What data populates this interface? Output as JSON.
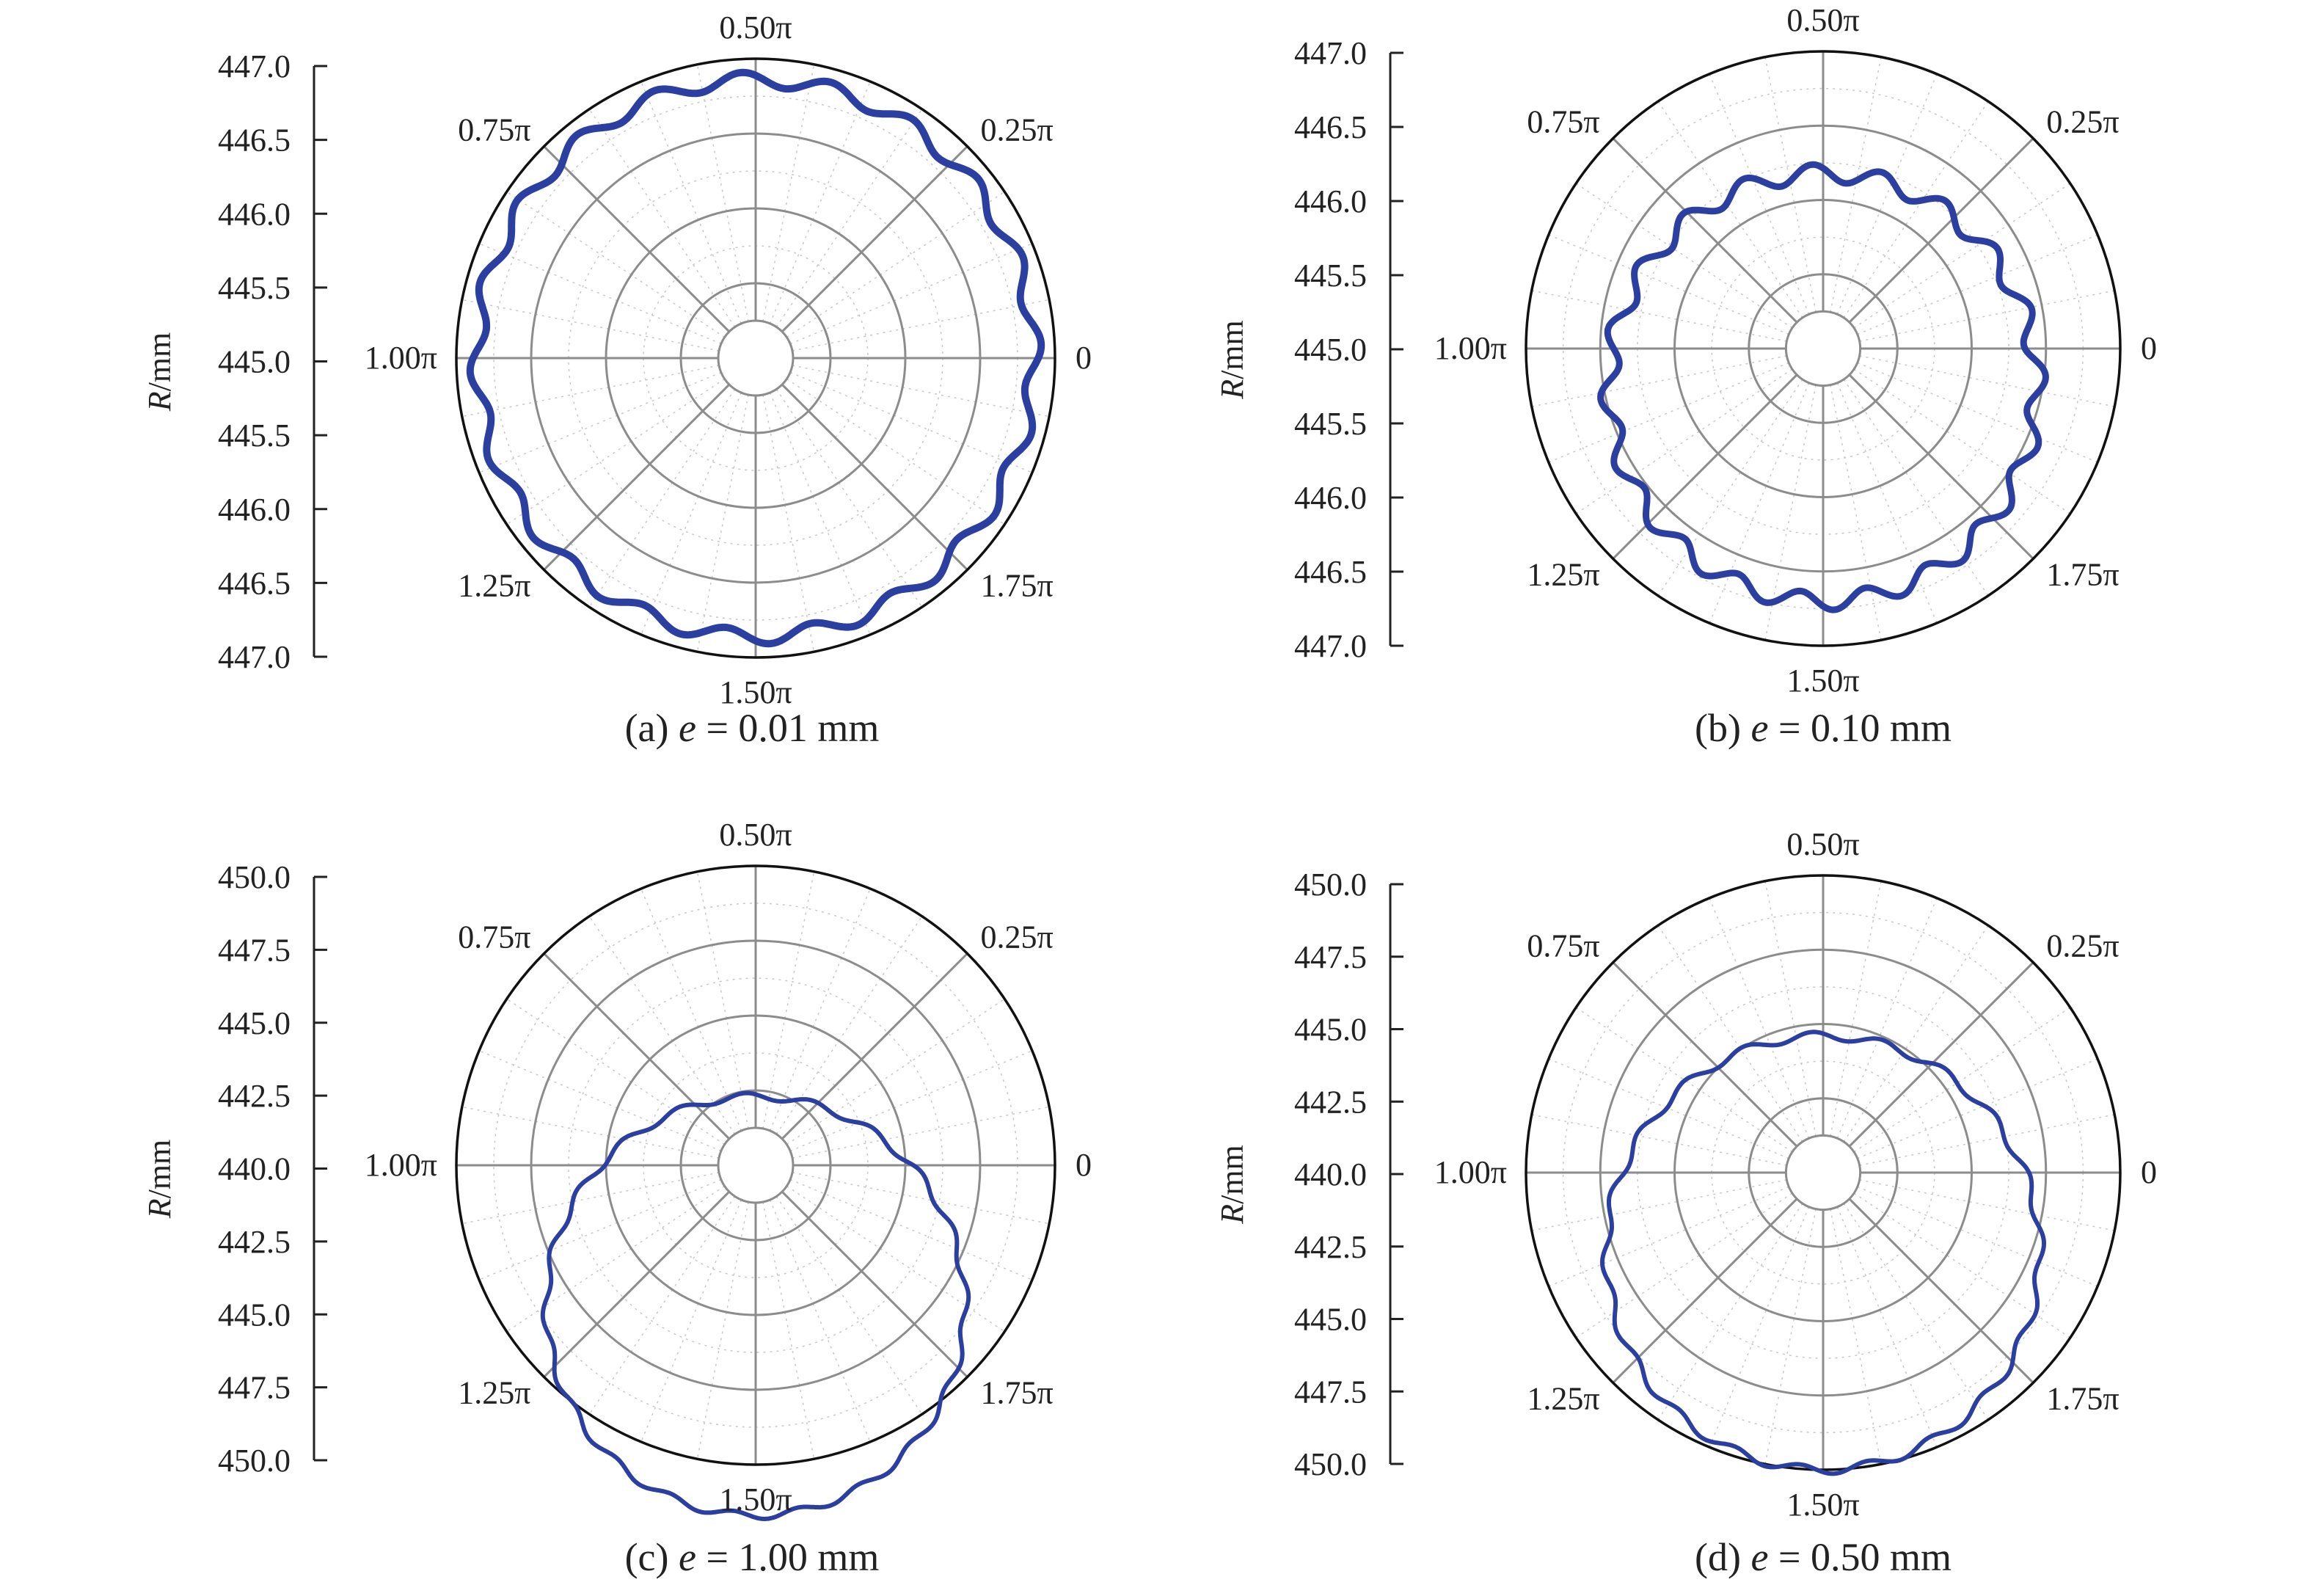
{
  "colors": {
    "curve": "#2a3fa0",
    "grid_major": "#8c8c8c",
    "grid_minor": "#c8c8c8",
    "outer_ring": "#111111",
    "axis": "#222222"
  },
  "chart_data": [
    {
      "type": "line",
      "subtype": "polar",
      "panel": "a",
      "caption": "(a) e = 0.01 mm",
      "caption_parts": {
        "prefix": "(a) ",
        "var": "e",
        "rest": " = 0.01 mm"
      },
      "ylabel": {
        "var": "R",
        "unit": "/mm"
      },
      "ytick_labels": [
        "447.0",
        "446.5",
        "446.0",
        "445.5",
        "445.0",
        "445.5",
        "446.0",
        "446.5",
        "447.0"
      ],
      "angle_labels": [
        "0",
        "0.25π",
        "0.50π",
        "0.75π",
        "1.00π",
        "1.25π",
        "1.50π",
        "1.75π"
      ],
      "curve": {
        "mean_radius_fraction": 0.93,
        "wave_amplitude": 0.025,
        "wave_count": 20,
        "line_width": 10
      },
      "grid": true
    },
    {
      "type": "line",
      "subtype": "polar",
      "panel": "b",
      "caption": "(b) e = 0.10 mm",
      "caption_parts": {
        "prefix": "(b) ",
        "var": "e",
        "rest": " = 0.10 mm"
      },
      "ylabel": {
        "var": "R",
        "unit": "/mm"
      },
      "ytick_labels": [
        "447.0",
        "446.5",
        "446.0",
        "445.5",
        "445.0",
        "445.5",
        "446.0",
        "446.5",
        "447.0"
      ],
      "angle_labels": [
        "0",
        "0.25π",
        "0.50π",
        "0.75π",
        "1.00π",
        "1.25π",
        "1.50π",
        "1.75π"
      ],
      "curve": {
        "mean_radius_fraction": 0.72,
        "wave_amplitude": 0.03,
        "wave_count": 20,
        "offset_y": -0.13,
        "line_width": 9
      },
      "grid": true
    },
    {
      "type": "line",
      "subtype": "polar",
      "panel": "c",
      "caption": "(c) e = 1.00 mm",
      "caption_parts": {
        "prefix": "(c) ",
        "var": "e",
        "rest": " = 1.00 mm"
      },
      "ylabel": {
        "var": "R",
        "unit": "/mm"
      },
      "ytick_labels": [
        "450.0",
        "447.5",
        "445.0",
        "442.5",
        "440.0",
        "442.5",
        "445.0",
        "447.5",
        "450.0"
      ],
      "angle_labels": [
        "0",
        "0.25π",
        "0.50π",
        "0.75π",
        "1.00π",
        "1.25π",
        "1.50π",
        "1.75π"
      ],
      "curve": {
        "mean_radius_fraction": 0.7,
        "wave_amplitude": 0.012,
        "wave_count": 20,
        "offset_y": -0.47,
        "line_width": 6
      },
      "grid": true
    },
    {
      "type": "line",
      "subtype": "polar",
      "panel": "d",
      "caption": "(d) e = 0.50 mm",
      "caption_parts": {
        "prefix": "(d) ",
        "var": "e",
        "rest": " = 0.50 mm"
      },
      "ylabel": {
        "var": "R",
        "unit": "/mm"
      },
      "ytick_labels": [
        "450.0",
        "447.5",
        "445.0",
        "442.5",
        "440.0",
        "442.5",
        "445.0",
        "447.5",
        "450.0"
      ],
      "angle_labels": [
        "0",
        "0.25π",
        "0.50π",
        "0.75π",
        "1.00π",
        "1.25π",
        "1.50π",
        "1.75π"
      ],
      "curve": {
        "mean_radius_fraction": 0.73,
        "wave_amplitude": 0.014,
        "wave_count": 20,
        "offset_y": -0.27,
        "line_width": 6
      },
      "grid": true
    }
  ]
}
